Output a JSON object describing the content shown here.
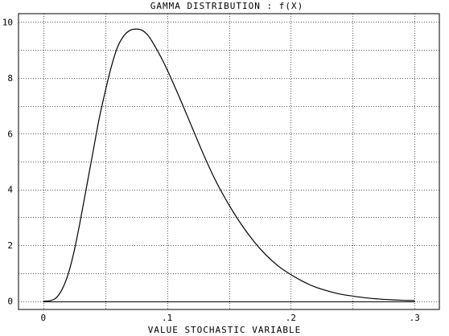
{
  "chart_data": {
    "type": "line",
    "title": "GAMMA DISTRIBUTION : f(X)",
    "xlabel": "VALUE STOCHASTIC VARIABLE",
    "ylabel": "",
    "xlim": [
      -0.02,
      0.32
    ],
    "ylim": [
      -0.3,
      10.3
    ],
    "x_ticks": [
      {
        "value": 0,
        "label": "0"
      },
      {
        "value": 0.1,
        "label": ".1"
      },
      {
        "value": 0.2,
        "label": ".2"
      },
      {
        "value": 0.3,
        "label": ".3"
      }
    ],
    "y_ticks": [
      {
        "value": 0,
        "label": "0"
      },
      {
        "value": 2,
        "label": "2"
      },
      {
        "value": 4,
        "label": "4"
      },
      {
        "value": 6,
        "label": "6"
      },
      {
        "value": 8,
        "label": "8"
      },
      {
        "value": 10,
        "label": "10"
      }
    ],
    "grid": true,
    "grid_x_step": 0.05,
    "grid_y_step": 1,
    "baseline_y": 0,
    "series": [
      {
        "color": "#000000",
        "x": [
          0.0,
          0.005,
          0.01,
          0.015,
          0.02,
          0.025,
          0.03,
          0.035,
          0.04,
          0.045,
          0.05,
          0.055,
          0.06,
          0.065,
          0.07,
          0.075,
          0.08,
          0.085,
          0.09,
          0.095,
          0.1,
          0.11,
          0.12,
          0.13,
          0.14,
          0.15,
          0.16,
          0.17,
          0.18,
          0.19,
          0.2,
          0.21,
          0.22,
          0.23,
          0.24,
          0.25,
          0.26,
          0.27,
          0.28,
          0.29,
          0.3
        ],
        "y": [
          0.0,
          0.01,
          0.1,
          0.4,
          0.95,
          1.8,
          2.9,
          4.1,
          5.3,
          6.5,
          7.5,
          8.4,
          9.1,
          9.5,
          9.7,
          9.75,
          9.7,
          9.5,
          9.15,
          8.75,
          8.3,
          7.3,
          6.25,
          5.2,
          4.25,
          3.45,
          2.75,
          2.15,
          1.65,
          1.25,
          0.95,
          0.7,
          0.5,
          0.36,
          0.25,
          0.18,
          0.12,
          0.08,
          0.05,
          0.03,
          0.02
        ]
      }
    ]
  }
}
